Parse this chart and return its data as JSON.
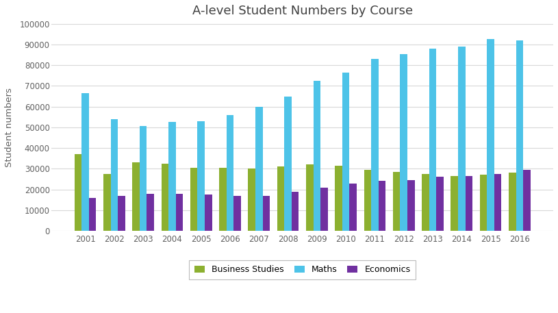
{
  "title": "A-level Student Numbers by Course",
  "ylabel": "Student numbers",
  "years": [
    2001,
    2002,
    2003,
    2004,
    2005,
    2006,
    2007,
    2008,
    2009,
    2010,
    2011,
    2012,
    2013,
    2014,
    2015,
    2016
  ],
  "business_studies": [
    37000,
    27500,
    33000,
    32500,
    30500,
    30500,
    30000,
    31000,
    32000,
    31500,
    29500,
    28500,
    27500,
    26500,
    27000,
    28000
  ],
  "maths": [
    66500,
    54000,
    50500,
    52500,
    53000,
    56000,
    60000,
    65000,
    72500,
    76500,
    83000,
    85500,
    88000,
    89000,
    92500,
    92000
  ],
  "economics": [
    16000,
    17000,
    18000,
    18000,
    17500,
    17000,
    17000,
    19000,
    21000,
    23000,
    24000,
    24500,
    26000,
    26500,
    27500,
    29500
  ],
  "business_color": "#8CB030",
  "maths_color": "#4DC3E8",
  "economics_color": "#7030A0",
  "background_color": "#FFFFFF",
  "grid_color": "#D8D8D8",
  "ylim": [
    0,
    100000
  ],
  "yticks": [
    0,
    10000,
    20000,
    30000,
    40000,
    50000,
    60000,
    70000,
    80000,
    90000,
    100000
  ],
  "ytick_labels": [
    "0",
    "10000",
    "20000",
    "30000",
    "40000",
    "50000",
    "60000",
    "70000",
    "80000",
    "90000",
    "100000"
  ]
}
